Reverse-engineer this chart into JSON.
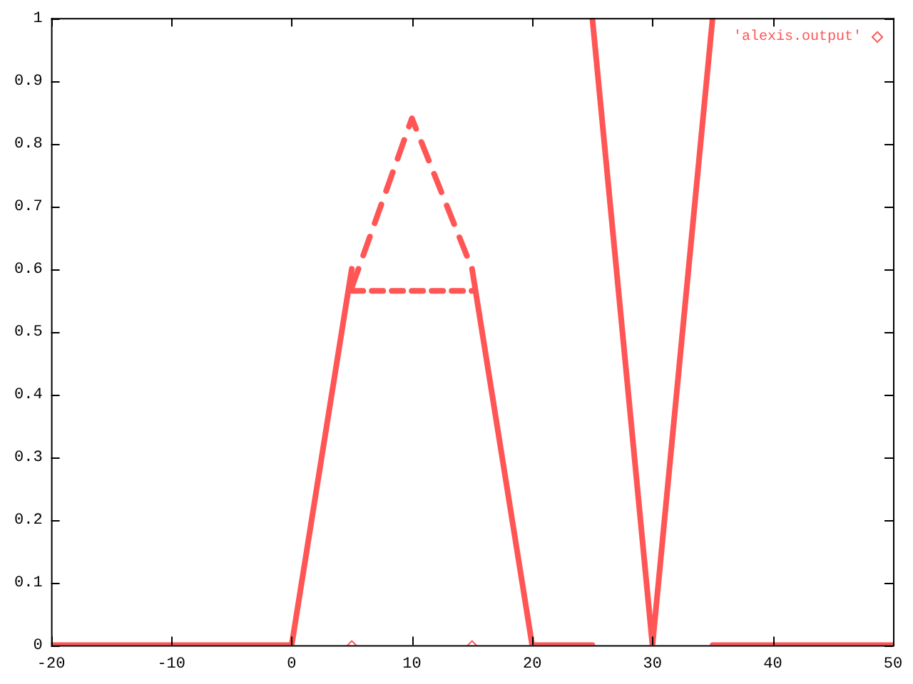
{
  "chart_data": {
    "type": "line",
    "xlim": [
      -20,
      50
    ],
    "xticks": [
      -20,
      -10,
      0,
      10,
      20,
      30,
      40,
      50
    ],
    "ylim": [
      0,
      1
    ],
    "yticks": [
      0,
      0.1,
      0.2,
      0.3,
      0.4,
      0.5,
      0.6,
      0.7,
      0.8,
      0.9,
      1
    ],
    "grid": false,
    "legend": "top right",
    "series": [
      {
        "color": "#ff5555",
        "line_style": "solid",
        "x": [
          -20,
          0,
          5
        ],
        "values": [
          0,
          0,
          0.6
        ]
      },
      {
        "color": "#ff5555",
        "line_style": "dashed",
        "x": [
          5,
          10,
          15
        ],
        "values": [
          0.57,
          0.84,
          0.6
        ]
      },
      {
        "color": "#ff5555",
        "line_style": "dotted",
        "x": [
          5,
          15
        ],
        "values": [
          0.565,
          0.565
        ]
      },
      {
        "color": "#ff5555",
        "line_style": "solid",
        "x": [
          15,
          20,
          25
        ],
        "values": [
          0.6,
          0,
          0
        ]
      },
      {
        "color": "#ff5555",
        "line_style": "solid",
        "x": [
          25,
          30,
          35
        ],
        "values": [
          1,
          0,
          1
        ]
      },
      {
        "color": "#ff5555",
        "line_style": "solid",
        "x": [
          35,
          50
        ],
        "values": [
          0,
          0
        ]
      },
      {
        "type": "scatter",
        "name": "'alexis.output'",
        "color": "#ff5555",
        "marker": "diamond",
        "x": [
          5,
          15
        ],
        "values": [
          0,
          0
        ]
      }
    ]
  }
}
